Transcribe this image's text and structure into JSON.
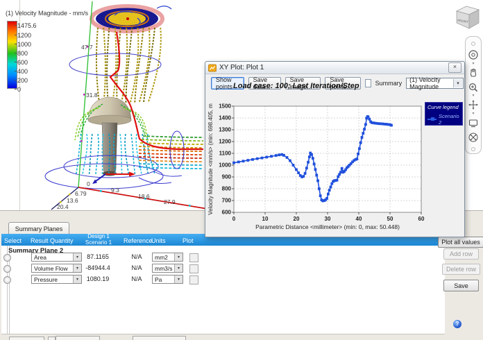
{
  "colorbar": {
    "title": "(1) Velocity Magnitude - mm/s",
    "ticks": [
      "1475.6",
      "1200",
      "1000",
      "800",
      "600",
      "400",
      "200",
      "0"
    ]
  },
  "scene": {
    "vertical_axis_labels": [
      "47.7",
      "31.8"
    ],
    "horizontal_axis_labels": [
      "0",
      "9.3",
      "18.6",
      "27.9"
    ],
    "depth_axis_labels": [
      "6.79",
      "13.6",
      "20.4"
    ],
    "viewcube_front_label": "FRONT"
  },
  "icons": {
    "combo_arrow": "▾",
    "close": "×",
    "help": "?",
    "nav_caret": "▾",
    "navbar_names": [
      "navigation-wheel",
      "pan-hand",
      "zoom-magnifier",
      "orbit-arrows",
      "showmotion-screen",
      "zoom-extents"
    ]
  },
  "plot_window": {
    "title": "XY Plot: Plot 1",
    "toolbar": {
      "show_points": "Show points",
      "save_data": "Save data...",
      "save_image": "Save image...",
      "save_points": "Save points...",
      "summary_label": "Summary",
      "summary_checked": false,
      "result_dropdown": "(1) Velocity Magnitude"
    }
  },
  "chart_data": {
    "type": "line",
    "title": "Load case: 100; Last Iteration/Step",
    "xlabel": "Parametric Distance <millimeter>  (min: 0, max: 50.448)",
    "ylabel": "Velocity Magnitude <mm/s>  (min: 698.405, m",
    "xlim": [
      0,
      60
    ],
    "ylim": [
      600,
      1500
    ],
    "xticks": [
      0,
      10,
      20,
      30,
      40,
      50,
      60
    ],
    "yticks": [
      600,
      700,
      800,
      900,
      1000,
      1100,
      1200,
      1300,
      1400,
      1500
    ],
    "grid": true,
    "legend_position": "top-right",
    "legend_title": "Curve legend",
    "series": [
      {
        "name": "Scenario 2",
        "color": "#2050dc",
        "marker": "square",
        "x": [
          0,
          1.5,
          3,
          4.5,
          6,
          7.5,
          9,
          10.5,
          12,
          13.5,
          14.5,
          15.4,
          16,
          17,
          18,
          19,
          20,
          20.7,
          21.3,
          21.8,
          22.3,
          22.8,
          23.3,
          23.8,
          24.2,
          24.5,
          24.9,
          25.3,
          25.7,
          26.1,
          26.5,
          26.9,
          27.3,
          27.7,
          28.1,
          28.5,
          29,
          29.4,
          29.8,
          30.2,
          30.6,
          31,
          31.4,
          31.8,
          32.2,
          32.5,
          33,
          33.4,
          33.8,
          34.2,
          34.6,
          35,
          35.4,
          35.8,
          36.2,
          36.6,
          37,
          37.5,
          38,
          38.5,
          39,
          39.4,
          39.8,
          40.2,
          40.6,
          41,
          41.4,
          41.8,
          42.2,
          42.5,
          42.8,
          43,
          43.4,
          43.8,
          44.2,
          44.7,
          45.2,
          45.8,
          46.4,
          47,
          47.6,
          48.2,
          48.8,
          49.4,
          50,
          50.448
        ],
        "y": [
          1020,
          1027,
          1034,
          1041,
          1048,
          1055,
          1061,
          1068,
          1075,
          1082,
          1087,
          1090,
          1083,
          1065,
          1038,
          1000,
          962,
          935,
          912,
          900,
          905,
          930,
          975,
          1025,
          1070,
          1103,
          1090,
          1058,
          1010,
          963,
          915,
          868,
          800,
          740,
          705,
          697,
          700,
          707,
          718,
          755,
          788,
          815,
          843,
          862,
          868,
          870,
          872,
          903,
          922,
          940,
          972,
          940,
          948,
          962,
          978,
          988,
          1000,
          1013,
          1028,
          1040,
          1048,
          1052,
          1095,
          1140,
          1190,
          1235,
          1270,
          1305,
          1345,
          1398,
          1412,
          1408,
          1390,
          1368,
          1360,
          1358,
          1356,
          1354,
          1352,
          1351,
          1350,
          1348,
          1347,
          1345,
          1343,
          1338
        ]
      }
    ]
  },
  "summary_panel": {
    "tab": "Summary Planes",
    "columns": {
      "select": "Select",
      "result_quantity": "Result Quantity",
      "design": "Design 1",
      "scenario": "Scenario 1",
      "reference": "Reference",
      "units": "Units",
      "plot": "Plot"
    },
    "group": "Summary Plane 2",
    "rows": [
      {
        "quantity": "Area",
        "value": "87.1165",
        "reference": "N/A",
        "units": "mm2",
        "plot_checked": false
      },
      {
        "quantity": "Volume Flow",
        "value": "-84944.4",
        "reference": "N/A",
        "units": "mm3/s",
        "plot_checked": false
      },
      {
        "quantity": "Pressure",
        "value": "1080.19",
        "reference": "N/A",
        "units": "Pa",
        "plot_checked": false
      }
    ],
    "buttons": {
      "plot_all": "Plot all values",
      "add_row": "Add row",
      "delete_row": "Delete row",
      "save": "Save"
    }
  },
  "colors": {
    "header_blue": "#2f9ce8",
    "curve_blue": "#2050dc",
    "legend_navy": "#000080",
    "colorbar_max_red": "#e00000",
    "colorbar_min_blue": "#0000e0"
  }
}
